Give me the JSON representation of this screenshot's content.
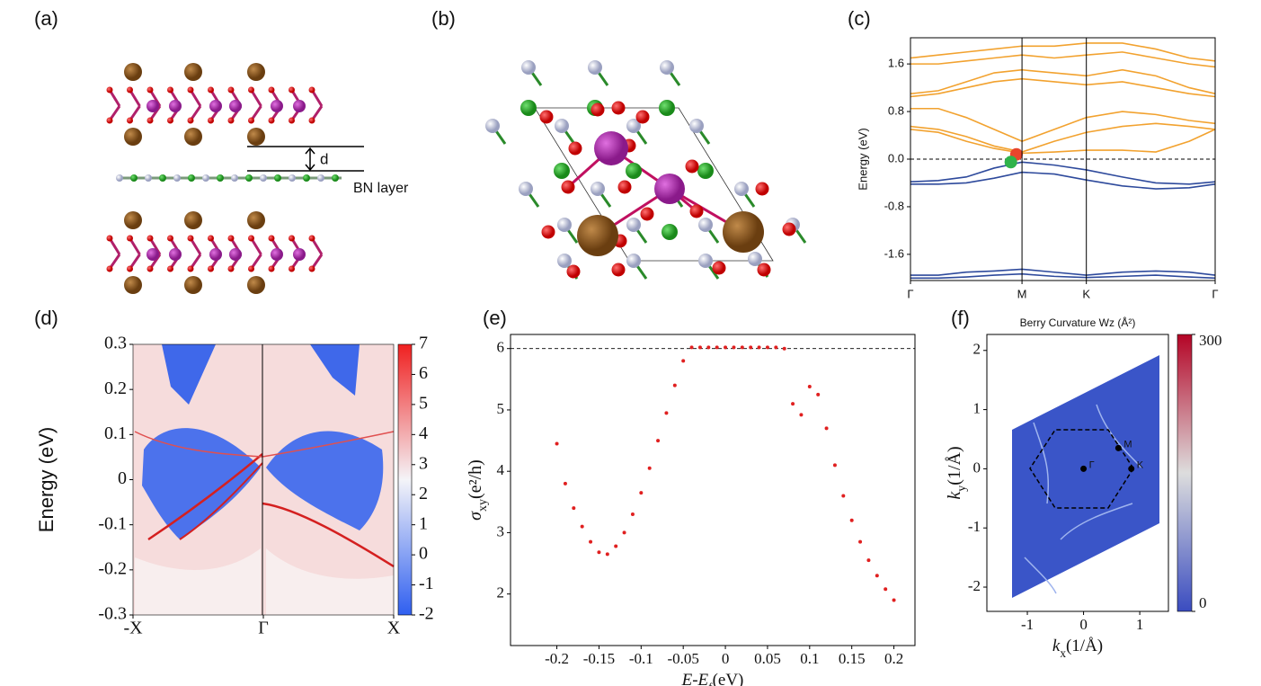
{
  "panel_labels": [
    "(a)",
    "(b)",
    "(c)",
    "(d)",
    "(e)",
    "(f)"
  ],
  "structure": {
    "layer_label": "BN layer",
    "spacing_label": "d"
  },
  "chart_data": [
    {
      "type": "line",
      "ylabel": "Energy (eV)",
      "x": [
        0,
        0.25,
        0.5,
        0.75,
        1,
        1.29,
        1.577,
        1.9,
        2.2,
        2.5,
        2.732
      ],
      "xlim": [
        0,
        2.732
      ],
      "xticks": [
        {
          "value": 0,
          "label": "Γ"
        },
        {
          "value": 1,
          "label": "M"
        },
        {
          "value": 1.577,
          "label": "K"
        },
        {
          "value": 2.732,
          "label": "Γ"
        }
      ],
      "ylim": [
        -2.04,
        2.04
      ],
      "yticks": [
        -1.6,
        -0.8,
        {
          "value": 0,
          "label": "0.0"
        },
        0.8,
        1.6
      ],
      "grid": "x",
      "hline": 0,
      "series": [
        {
          "color": "#f2a22f",
          "values": [
            0.5,
            0.45,
            0.3,
            0.18,
            0.1,
            0.12,
            0.15,
            0.15,
            0.12,
            0.3,
            0.5
          ]
        },
        {
          "color": "#f2a22f",
          "values": [
            0.55,
            0.5,
            0.38,
            0.22,
            0.12,
            0.3,
            0.45,
            0.55,
            0.6,
            0.55,
            0.5
          ]
        },
        {
          "color": "#f2a22f",
          "values": [
            0.85,
            0.85,
            0.7,
            0.5,
            0.3,
            0.5,
            0.7,
            0.8,
            0.75,
            0.65,
            0.6
          ]
        },
        {
          "color": "#f2a22f",
          "values": [
            1.05,
            1.1,
            1.2,
            1.3,
            1.35,
            1.3,
            1.25,
            1.3,
            1.2,
            1.1,
            1.05
          ]
        },
        {
          "color": "#f2a22f",
          "values": [
            1.1,
            1.15,
            1.3,
            1.45,
            1.5,
            1.45,
            1.4,
            1.5,
            1.4,
            1.2,
            1.1
          ]
        },
        {
          "color": "#f2a22f",
          "values": [
            1.6,
            1.6,
            1.65,
            1.7,
            1.75,
            1.7,
            1.75,
            1.8,
            1.7,
            1.6,
            1.55
          ]
        },
        {
          "color": "#f2a22f",
          "values": [
            1.7,
            1.75,
            1.8,
            1.85,
            1.9,
            1.9,
            1.95,
            1.95,
            1.85,
            1.7,
            1.65
          ]
        },
        {
          "color": "#2e4a9c",
          "values": [
            -0.38,
            -0.36,
            -0.3,
            -0.15,
            -0.05,
            -0.1,
            -0.18,
            -0.3,
            -0.4,
            -0.42,
            -0.38
          ]
        },
        {
          "color": "#2e4a9c",
          "values": [
            -0.42,
            -0.42,
            -0.4,
            -0.32,
            -0.22,
            -0.25,
            -0.35,
            -0.45,
            -0.5,
            -0.48,
            -0.42
          ]
        },
        {
          "color": "#2e4a9c",
          "values": [
            -1.95,
            -1.95,
            -1.9,
            -1.88,
            -1.85,
            -1.9,
            -1.95,
            -1.9,
            -1.88,
            -1.9,
            -1.95
          ]
        },
        {
          "color": "#2e4a9c",
          "values": [
            -2.0,
            -2.0,
            -1.98,
            -1.95,
            -1.93,
            -1.97,
            -1.99,
            -1.97,
            -1.95,
            -1.98,
            -2.0
          ]
        }
      ],
      "points": [
        {
          "x": 0.95,
          "y": 0.08,
          "color": "#e8452c"
        },
        {
          "x": 0.9,
          "y": -0.05,
          "color": "#2fb34a"
        }
      ]
    },
    {
      "type": "heatmap",
      "ylabel": "Energy (eV)",
      "xlim": [
        -1,
        1
      ],
      "xticks": [
        {
          "value": -1,
          "label": "-X"
        },
        {
          "value": 0,
          "label": "Γ"
        },
        {
          "value": 1,
          "label": "X"
        }
      ],
      "ylim": [
        -0.3,
        0.3
      ],
      "yticks": [
        0.3,
        0.2,
        0.1,
        0,
        -0.1,
        -0.2,
        -0.3
      ],
      "clim": [
        -2,
        7
      ],
      "cticks": [
        7,
        6,
        5,
        4,
        3,
        2,
        1,
        0,
        -1,
        -2
      ],
      "colormap": [
        "#2f5ff0",
        "#f4f4f8",
        "#f02020"
      ]
    },
    {
      "type": "scatter",
      "xlabel": {
        "text": "E-E",
        "sub": "f",
        "unit": "(eV)"
      },
      "ylabel": {
        "text": "σ",
        "sub": "xy",
        "unit": "(e²/h)"
      },
      "xlim": [
        -0.255,
        0.225
      ],
      "xticks": [
        -0.2,
        -0.15,
        -0.1,
        -0.05,
        0,
        0.05,
        0.1,
        0.15,
        0.2
      ],
      "ylim": [
        1.16,
        6.23
      ],
      "yticks": [
        2,
        3,
        4,
        5,
        6
      ],
      "hline": 6,
      "color": "#e02020",
      "x": [
        -0.2,
        -0.19,
        -0.18,
        -0.17,
        -0.16,
        -0.15,
        -0.14,
        -0.13,
        -0.12,
        -0.11,
        -0.1,
        -0.09,
        -0.08,
        -0.07,
        -0.06,
        -0.05,
        -0.04,
        -0.03,
        -0.02,
        -0.01,
        0,
        0.01,
        0.02,
        0.03,
        0.04,
        0.05,
        0.06,
        0.07,
        0.08,
        0.09,
        0.1,
        0.11,
        0.12,
        0.13,
        0.14,
        0.15,
        0.16,
        0.17,
        0.18,
        0.19,
        0.2
      ],
      "values": [
        4.45,
        3.8,
        3.4,
        3.1,
        2.85,
        2.68,
        2.65,
        2.78,
        3.0,
        3.3,
        3.65,
        4.05,
        4.5,
        4.95,
        5.4,
        5.8,
        6.02,
        6.02,
        6.02,
        6.02,
        6.02,
        6.02,
        6.02,
        6.02,
        6.02,
        6.02,
        6.02,
        6.0,
        5.1,
        4.92,
        5.38,
        5.25,
        4.7,
        4.1,
        3.6,
        3.2,
        2.85,
        2.55,
        2.3,
        2.08,
        1.9
      ]
    },
    {
      "type": "heatmap",
      "title": "Berry Curvature Wz (Å²)",
      "xlabel": {
        "text": "k",
        "sub": "x",
        "unit": "(1/Å)"
      },
      "ylabel": {
        "text": "k",
        "sub": "y",
        "unit": "(1/Å)"
      },
      "xlim": [
        -1.72,
        1.51
      ],
      "xticks": [
        -1,
        0,
        1
      ],
      "ylim": [
        -2.41,
        2.27
      ],
      "yticks": [
        2,
        1,
        0,
        -1,
        -2
      ],
      "clim": [
        0,
        300
      ],
      "cticks": [
        300,
        0
      ],
      "colormap": [
        "#3a4cc0",
        "#dddddd",
        "#b40426"
      ],
      "points": [
        {
          "label": "Γ",
          "x": 0,
          "y": 0
        },
        {
          "label": "M",
          "x": 0.62,
          "y": 0.35
        },
        {
          "label": "K",
          "x": 0.85,
          "y": 0
        }
      ]
    }
  ]
}
